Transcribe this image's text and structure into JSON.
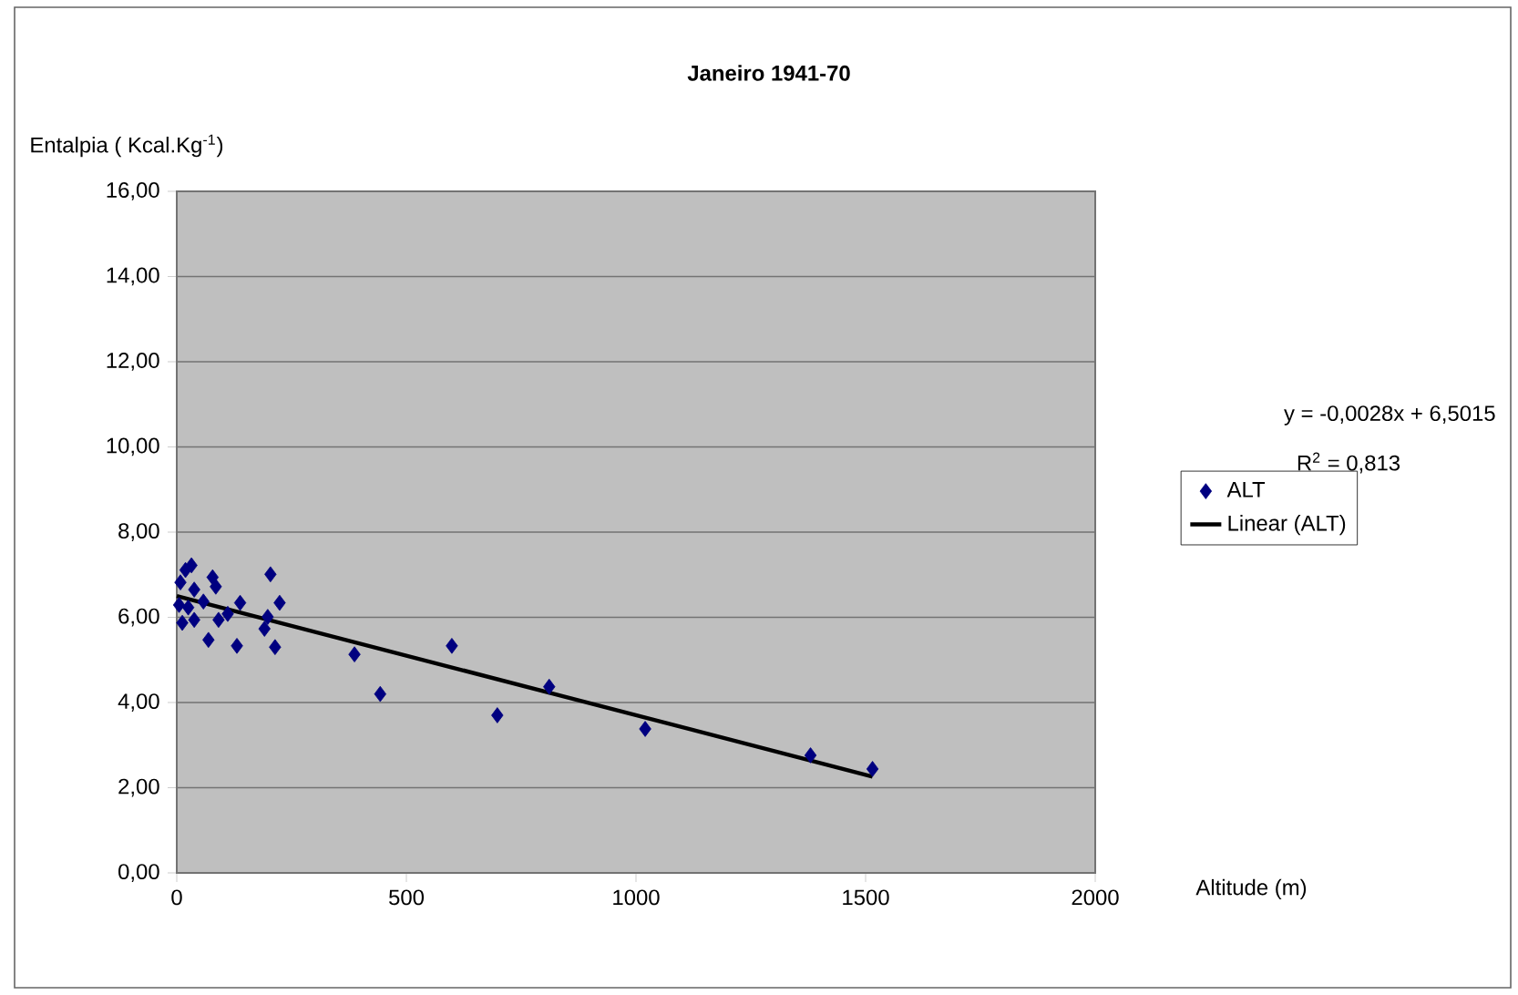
{
  "chart_data": {
    "type": "scatter",
    "title": "Janeiro 1941-70",
    "xlabel": "Altitude (m)",
    "ylabel": "Entalpia ( Kcal.Kg$^{-1}$)",
    "xlim": [
      0,
      2000
    ],
    "xticks": [
      0,
      500,
      1000,
      1500,
      2000
    ],
    "ylim": [
      0,
      16
    ],
    "yticks": [
      {
        "value": 0,
        "label": "0,00"
      },
      {
        "value": 2,
        "label": "2,00"
      },
      {
        "value": 4,
        "label": "4,00"
      },
      {
        "value": 6,
        "label": "6,00"
      },
      {
        "value": 8,
        "label": "8,00"
      },
      {
        "value": 10,
        "label": "10,00"
      },
      {
        "value": 12,
        "label": "12,00"
      },
      {
        "value": 14,
        "label": "14,00"
      },
      {
        "value": 16,
        "label": "16,00"
      }
    ],
    "grid": "y",
    "legend": "right",
    "marker": "diamond",
    "annotations": [
      "y = -0,0028x + 6,5015",
      "R$^{2}$ = 0,813"
    ],
    "series": [
      {
        "name": "ALT",
        "color": "#000080",
        "x": [
          19,
          32,
          8,
          78,
          85,
          38,
          204,
          25,
          58,
          12,
          38,
          69,
          91,
          138,
          131,
          224,
          198,
          191,
          214,
          387,
          443,
          599,
          111,
          5,
          698,
          811,
          1020,
          1380,
          1515
        ],
        "values": [
          7.11,
          7.22,
          6.82,
          6.94,
          6.72,
          6.65,
          7.01,
          6.23,
          6.37,
          5.87,
          5.94,
          5.47,
          5.94,
          6.34,
          5.33,
          6.34,
          6.01,
          5.73,
          5.3,
          5.13,
          4.2,
          5.33,
          6.08,
          6.29,
          3.7,
          4.37,
          3.38,
          2.76,
          2.44
        ]
      },
      {
        "name": "Linear (ALT)",
        "type": "line",
        "color": "#000000",
        "marker": "none",
        "line_style": "solid",
        "x": [
          0,
          1515
        ],
        "values": [
          6.5,
          2.26
        ]
      }
    ]
  }
}
